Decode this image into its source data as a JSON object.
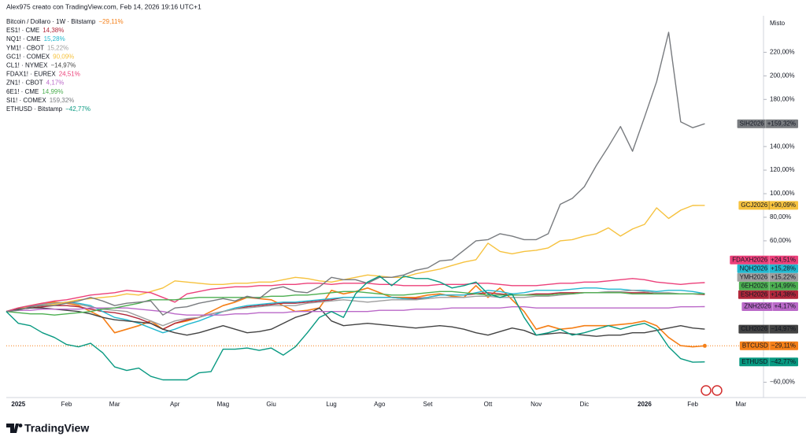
{
  "brand": "TradingView",
  "chart_data": {
    "type": "line",
    "credit": "Alex975 creato con TradingView.com, Feb 14, 2026 19:16 UTC+1",
    "scale_label": "Misto",
    "categories": [
      null,
      "2025",
      null,
      null,
      null,
      "Feb",
      null,
      null,
      null,
      "Mar",
      null,
      null,
      null,
      null,
      "Apr",
      null,
      null,
      null,
      "Mag",
      null,
      null,
      null,
      "Giu",
      null,
      null,
      null,
      null,
      "Lug",
      null,
      null,
      null,
      "Ago",
      null,
      null,
      null,
      "Set",
      null,
      null,
      null,
      null,
      "Ott",
      null,
      null,
      null,
      "Nov",
      null,
      null,
      null,
      "Dic",
      null,
      null,
      null,
      null,
      "2026",
      null,
      null,
      null,
      "Feb",
      null,
      null,
      null,
      "Mar"
    ],
    "ylim": [
      -73,
      251
    ],
    "yticks": [
      {
        "value": 220,
        "label": "220,00%"
      },
      {
        "value": 200,
        "label": "200,00%"
      },
      {
        "value": 180,
        "label": "180,00%"
      },
      {
        "value": 140,
        "label": "140,00%"
      },
      {
        "value": 120,
        "label": "120,00%"
      },
      {
        "value": 100,
        "label": "100,00%"
      },
      {
        "value": 80,
        "label": "80,00%"
      },
      {
        "value": 60,
        "label": "60,00%"
      },
      {
        "value": -60,
        "label": "−60,00%"
      }
    ],
    "series": [
      {
        "name": "Bitcoin / Dollaro · 1W · Bitstamp",
        "symbol": "BTCUSD",
        "legend_label": "−29,11%",
        "tag_label": "−29,11%",
        "color": "#f57f17",
        "values": [
          0,
          3,
          5,
          7,
          8,
          7,
          5,
          0,
          -5,
          -18,
          -15,
          -12,
          -8,
          -15,
          -10,
          -8,
          -5,
          0,
          5,
          8,
          12,
          11,
          10,
          5,
          0,
          1,
          3,
          18,
          15,
          17,
          20,
          16,
          12,
          12,
          12,
          14,
          15,
          13,
          12,
          22,
          12,
          20,
          10,
          0,
          -15,
          -12,
          -15,
          -14,
          -12,
          -12,
          -12,
          -11,
          -10,
          -8,
          -12,
          -22,
          -29,
          -30,
          -29.11,
          null,
          null,
          null
        ]
      },
      {
        "name": "ES1! · CME",
        "symbol": "ESH2026",
        "legend_label": "14,38%",
        "tag_label": "+14,38%",
        "color": "#b2283b",
        "values": [
          0,
          2,
          3,
          4,
          5,
          5,
          4,
          2,
          0,
          -1,
          -3,
          -6,
          -10,
          -15,
          -10,
          -7,
          -5,
          -2,
          0,
          2,
          4,
          5,
          6,
          7,
          7,
          8,
          9,
          10,
          12,
          12,
          12,
          12,
          12,
          11,
          11,
          12,
          14,
          14,
          14,
          15,
          16,
          15,
          14,
          14,
          15,
          15,
          16,
          16,
          16,
          16,
          16,
          16,
          16,
          16,
          15,
          15,
          15,
          15,
          14.38,
          null,
          null,
          null
        ]
      },
      {
        "name": "NQ1! · CME",
        "symbol": "NQH2026",
        "legend_label": "15,28%",
        "tag_label": "+15,28%",
        "color": "#22b8cf",
        "values": [
          0,
          3,
          5,
          6,
          7,
          8,
          7,
          5,
          0,
          -5,
          -7,
          -10,
          -14,
          -18,
          -15,
          -11,
          -8,
          -4,
          0,
          3,
          5,
          6,
          7,
          8,
          8,
          9,
          10,
          11,
          12,
          12,
          12,
          12,
          12,
          11,
          10,
          12,
          14,
          14,
          14,
          16,
          18,
          17,
          15,
          16,
          18,
          18,
          18,
          19,
          20,
          20,
          19,
          19,
          18,
          18,
          17,
          18,
          18,
          17,
          15.28,
          null,
          null,
          null
        ]
      },
      {
        "name": "YM1! · CBOT",
        "symbol": "YMH2026",
        "legend_label": "15,22%",
        "tag_label": "+15,22%",
        "color": "#9e9e9e",
        "values": [
          0,
          2,
          4,
          6,
          7,
          8,
          6,
          4,
          2,
          1,
          0,
          -4,
          -8,
          -12,
          -8,
          -6,
          -5,
          -2,
          0,
          2,
          3,
          4,
          5,
          5,
          5,
          7,
          8,
          9,
          10,
          9,
          8,
          9,
          10,
          10,
          10,
          11,
          12,
          12,
          12,
          13,
          13,
          12,
          12,
          12,
          13,
          13,
          14,
          15,
          16,
          16,
          17,
          17,
          18,
          17,
          16,
          16,
          15,
          15,
          15.22,
          null,
          null,
          null
        ]
      },
      {
        "name": "GC1! · COMEX",
        "symbol": "GCJ2026",
        "legend_label": "90,09%",
        "tag_label": "+90,09%",
        "color": "#f6c23e",
        "values": [
          0,
          2,
          4,
          5,
          6,
          8,
          10,
          11,
          12,
          13,
          15,
          14,
          17,
          20,
          26,
          25,
          24,
          23,
          23,
          24,
          24,
          25,
          25,
          27,
          29,
          28,
          26,
          25,
          27,
          29,
          31,
          30,
          29,
          29,
          32,
          34,
          36,
          39,
          42,
          44,
          58,
          51,
          49,
          51,
          52,
          54,
          60,
          61,
          64,
          66,
          71,
          64,
          70,
          74,
          88,
          79,
          86,
          90,
          90.09,
          null,
          null,
          null
        ]
      },
      {
        "name": "CL1! · NYMEX",
        "symbol": "CLH2026",
        "legend_label": "−14,97%",
        "tag_label": "−14,97%",
        "color": "#424242",
        "values": [
          0,
          2,
          3,
          3,
          2,
          1,
          0,
          -2,
          -5,
          -7,
          -8,
          -9,
          -10,
          -15,
          -18,
          -20,
          -18,
          -15,
          -12,
          -15,
          -18,
          -17,
          -15,
          -10,
          -5,
          -2,
          3,
          -8,
          -12,
          -11,
          -10,
          -11,
          -12,
          -13,
          -14,
          -13,
          -12,
          -13,
          -15,
          -18,
          -20,
          -17,
          -14,
          -16,
          -20,
          -19,
          -18,
          -19,
          -20,
          -21,
          -20,
          -20,
          -18,
          -18,
          -16,
          -14,
          -12,
          -14,
          -14.97,
          null,
          null,
          null
        ]
      },
      {
        "name": "FDAX1! · EUREX",
        "symbol": "FDAXH2026",
        "legend_label": "24,51%",
        "tag_label": "+24,51%",
        "color": "#ec407a",
        "values": [
          0,
          3,
          5,
          7,
          9,
          10,
          12,
          14,
          15,
          16,
          18,
          17,
          16,
          12,
          8,
          15,
          17,
          19,
          20,
          21,
          21,
          22,
          22,
          23,
          23,
          24,
          24,
          23,
          24,
          24,
          24,
          23,
          23,
          22,
          22,
          22,
          23,
          23,
          23,
          24,
          24,
          23,
          22,
          22,
          22,
          23,
          24,
          24,
          25,
          25,
          26,
          27,
          28,
          27,
          25,
          24,
          23,
          24,
          24.51,
          null,
          null,
          null
        ]
      },
      {
        "name": "ZN1! · CBOT",
        "symbol": "ZNH2026",
        "legend_label": "4,17%",
        "tag_label": "+4,17%",
        "color": "#ba68c8",
        "values": [
          0,
          1,
          1,
          2,
          2,
          2,
          2,
          3,
          3,
          3,
          3,
          2,
          1,
          0,
          -2,
          -3,
          -3,
          -3,
          -3,
          -2,
          -2,
          -1,
          -1,
          -1,
          0,
          0,
          0,
          0,
          0,
          0,
          0,
          1,
          1,
          1,
          2,
          2,
          2,
          3,
          3,
          3,
          3,
          3,
          4,
          4,
          3,
          3,
          3,
          3,
          3,
          3,
          3,
          3,
          3,
          3,
          3,
          3,
          4,
          4,
          4.17,
          null,
          null,
          null
        ]
      },
      {
        "name": "6E1! · CME",
        "symbol": "6EH2026",
        "legend_label": "14,99%",
        "tag_label": "+14,99%",
        "color": "#4caf50",
        "values": [
          0,
          -1,
          -2,
          -2,
          -3,
          -2,
          -1,
          0,
          2,
          3,
          5,
          7,
          10,
          10,
          10,
          11,
          12,
          12,
          12,
          12,
          12,
          12,
          13,
          13,
          14,
          14,
          15,
          16,
          17,
          17,
          16,
          15,
          14,
          14,
          15,
          16,
          17,
          17,
          16,
          15,
          14,
          14,
          14,
          14,
          14,
          14,
          15,
          15,
          16,
          16,
          16,
          16,
          15,
          15,
          15,
          15,
          15,
          15,
          14.99,
          null,
          null,
          null
        ]
      },
      {
        "name": "SI1! · COMEX",
        "symbol": "SIH2026",
        "legend_label": "159,32%",
        "tag_label": "+159,32%",
        "color": "#787b7f",
        "values": [
          0,
          1,
          4,
          5,
          5,
          7,
          9,
          12,
          9,
          5,
          7,
          8,
          9,
          -3,
          3,
          4,
          7,
          9,
          11,
          9,
          13,
          11,
          19,
          21,
          17,
          16,
          21,
          29,
          27,
          27,
          24,
          29,
          29,
          31,
          35,
          37,
          43,
          44,
          52,
          60,
          61,
          66,
          64,
          61,
          61,
          66,
          91,
          96,
          106,
          124,
          140,
          157,
          136,
          165,
          195,
          237,
          161,
          156,
          159.32,
          null,
          null,
          null
        ]
      },
      {
        "name": "ETHUSD · Bitstamp",
        "symbol": "ETHUSD",
        "legend_label": "−42,77%",
        "tag_label": "−42,77%",
        "color": "#089981",
        "values": [
          0,
          -10,
          -12,
          -18,
          -22,
          -28,
          -30,
          -27,
          -35,
          -47,
          -50,
          -48,
          -55,
          -58,
          -58,
          -58,
          -52,
          -51,
          -32,
          -32,
          -31,
          -33,
          -31,
          -37,
          -30,
          -18,
          -5,
          0,
          -5,
          15,
          25,
          30,
          22,
          30,
          28,
          28,
          25,
          20,
          22,
          25,
          15,
          12,
          15,
          -5,
          -20,
          -18,
          -15,
          -20,
          -18,
          -15,
          -12,
          -15,
          -12,
          -10,
          -15,
          -30,
          -40,
          -43,
          -42.77,
          null,
          null,
          null
        ]
      }
    ]
  }
}
